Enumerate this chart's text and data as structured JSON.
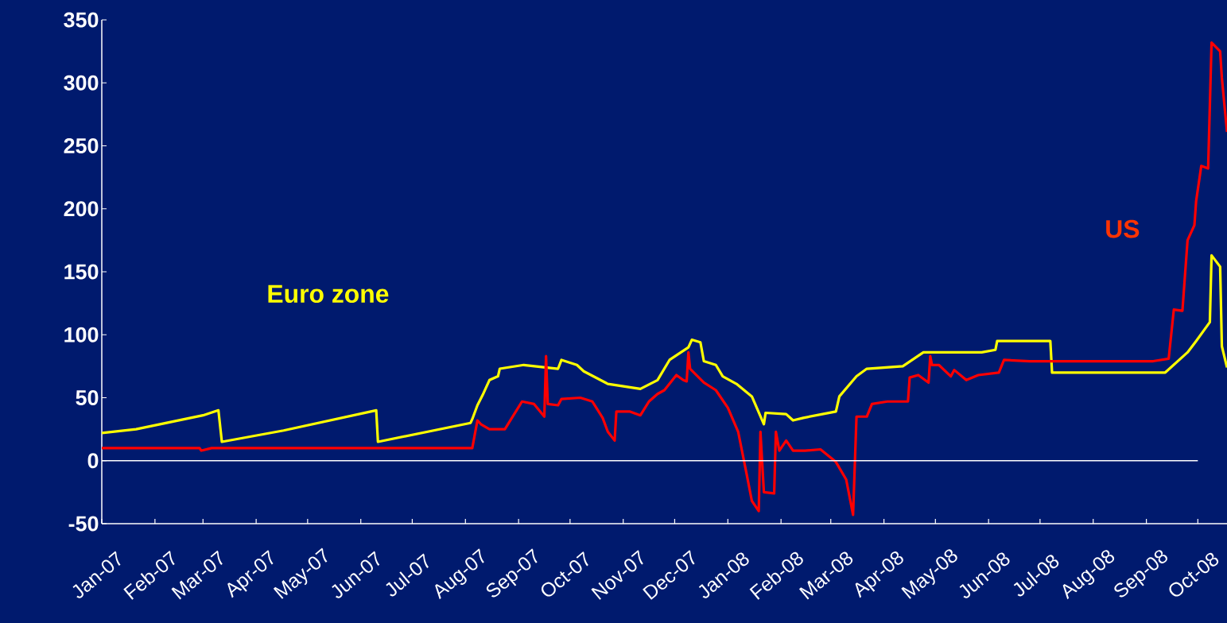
{
  "chart_data": {
    "type": "line",
    "xlim": [
      "2007-01-01",
      "2008-10-18"
    ],
    "xticks": [
      {
        "value": "2007-01-01",
        "label": "Jan-07"
      },
      {
        "value": "2007-02-01",
        "label": "Feb-07"
      },
      {
        "value": "2007-03-01",
        "label": "Mar-07"
      },
      {
        "value": "2007-04-01",
        "label": "Apr-07"
      },
      {
        "value": "2007-05-01",
        "label": "May-07"
      },
      {
        "value": "2007-06-01",
        "label": "Jun-07"
      },
      {
        "value": "2007-07-01",
        "label": "Jul-07"
      },
      {
        "value": "2007-08-01",
        "label": "Aug-07"
      },
      {
        "value": "2007-09-01",
        "label": "Sep-07"
      },
      {
        "value": "2007-10-01",
        "label": "Oct-07"
      },
      {
        "value": "2007-11-01",
        "label": "Nov-07"
      },
      {
        "value": "2007-12-01",
        "label": "Dec-07"
      },
      {
        "value": "2008-01-01",
        "label": "Jan-08"
      },
      {
        "value": "2008-02-01",
        "label": "Feb-08"
      },
      {
        "value": "2008-03-01",
        "label": "Mar-08"
      },
      {
        "value": "2008-04-01",
        "label": "Apr-08"
      },
      {
        "value": "2008-05-01",
        "label": "May-08"
      },
      {
        "value": "2008-06-01",
        "label": "Jun-08"
      },
      {
        "value": "2008-07-01",
        "label": "Jul-08"
      },
      {
        "value": "2008-08-01",
        "label": "Aug-08"
      },
      {
        "value": "2008-09-01",
        "label": "Sep-08"
      },
      {
        "value": "2008-10-01",
        "label": "Oct-08"
      }
    ],
    "ylim": [
      -50,
      350
    ],
    "yticks": [
      -50,
      0,
      50,
      100,
      150,
      200,
      250,
      300,
      350
    ],
    "ref_lines": [
      {
        "axis": "y",
        "value": 0,
        "color": "#ffffff"
      }
    ],
    "series": [
      {
        "name": "Euro zone",
        "color": "#ffff00",
        "x": [
          "2007-01-01",
          "2007-01-21",
          "2007-03-01",
          "2007-03-10",
          "2007-03-12",
          "2007-04-17",
          "2007-06-10",
          "2007-06-11",
          "2007-08-04",
          "2007-08-05",
          "2007-08-08",
          "2007-08-11",
          "2007-08-15",
          "2007-08-20",
          "2007-08-21",
          "2007-09-04",
          "2007-09-24",
          "2007-09-26",
          "2007-10-05",
          "2007-10-09",
          "2007-10-23",
          "2007-11-11",
          "2007-11-21",
          "2007-11-28",
          "2007-12-09",
          "2007-12-11",
          "2007-12-16",
          "2007-12-18",
          "2007-12-25",
          "2007-12-29",
          "2008-01-06",
          "2008-01-15",
          "2008-01-22",
          "2008-01-23",
          "2008-02-04",
          "2008-02-08",
          "2008-02-14",
          "2008-03-04",
          "2008-03-06",
          "2008-03-16",
          "2008-03-22",
          "2008-04-12",
          "2008-04-24",
          "2008-05-28",
          "2008-06-05",
          "2008-06-06",
          "2008-07-07",
          "2008-07-08",
          "2008-09-12",
          "2008-09-25",
          "2008-09-30",
          "2008-10-08",
          "2008-10-09",
          "2008-10-14",
          "2008-10-15",
          "2008-10-18"
        ],
        "values": [
          22,
          25,
          36,
          40,
          15,
          24,
          40,
          15,
          30,
          33,
          44,
          52,
          64,
          67,
          73,
          76,
          73,
          80,
          76,
          71,
          61,
          57,
          64,
          80,
          90,
          96,
          94,
          79,
          76,
          67,
          61,
          51,
          29,
          38,
          37,
          32,
          34,
          39,
          51,
          67,
          73,
          75,
          86,
          86,
          88,
          95,
          95,
          70,
          70,
          86,
          95,
          110,
          163,
          154,
          91,
          74
        ]
      },
      {
        "name": "US",
        "color": "#ff0000",
        "x": [
          "2007-01-01",
          "2007-02-27",
          "2007-02-28",
          "2007-03-06",
          "2007-08-05",
          "2007-08-08",
          "2007-08-10",
          "2007-08-15",
          "2007-08-24",
          "2007-09-03",
          "2007-09-10",
          "2007-09-16",
          "2007-09-17",
          "2007-09-18",
          "2007-09-24",
          "2007-09-26",
          "2007-10-07",
          "2007-10-14",
          "2007-10-20",
          "2007-10-23",
          "2007-10-27",
          "2007-10-28",
          "2007-11-05",
          "2007-11-11",
          "2007-11-16",
          "2007-11-21",
          "2007-11-25",
          "2007-12-02",
          "2007-12-06",
          "2007-12-08",
          "2007-12-09",
          "2007-12-10",
          "2007-12-18",
          "2007-12-25",
          "2008-01-01",
          "2008-01-07",
          "2008-01-12",
          "2008-01-15",
          "2008-01-19",
          "2008-01-20",
          "2008-01-22",
          "2008-01-28",
          "2008-01-29",
          "2008-01-31",
          "2008-02-04",
          "2008-02-08",
          "2008-02-15",
          "2008-02-24",
          "2008-03-04",
          "2008-03-10",
          "2008-03-14",
          "2008-03-16",
          "2008-03-22",
          "2008-03-25",
          "2008-04-03",
          "2008-04-15",
          "2008-04-16",
          "2008-04-21",
          "2008-04-27",
          "2008-04-28",
          "2008-04-29",
          "2008-05-03",
          "2008-05-10",
          "2008-05-12",
          "2008-05-19",
          "2008-05-26",
          "2008-06-07",
          "2008-06-10",
          "2008-06-25",
          "2008-09-05",
          "2008-09-14",
          "2008-09-17",
          "2008-09-22",
          "2008-09-25",
          "2008-09-29",
          "2008-09-30",
          "2008-10-03",
          "2008-10-07",
          "2008-10-09",
          "2008-10-14",
          "2008-10-15",
          "2008-10-18"
        ],
        "values": [
          10,
          10,
          8,
          10,
          10,
          32,
          29,
          25,
          25,
          47,
          45,
          35,
          83,
          45,
          44,
          49,
          50,
          47,
          34,
          23,
          16,
          39,
          39,
          36,
          47,
          53,
          56,
          68,
          64,
          63,
          86,
          73,
          62,
          56,
          42,
          23,
          -11,
          -32,
          -40,
          23,
          -25,
          -26,
          23,
          8,
          16,
          8,
          8,
          9,
          -1,
          -15,
          -43,
          35,
          35,
          45,
          47,
          47,
          66,
          68,
          62,
          83,
          76,
          76,
          67,
          72,
          64,
          68,
          70,
          80,
          79,
          79,
          81,
          120,
          119,
          175,
          187,
          206,
          234,
          232,
          332,
          325,
          304,
          261
        ]
      }
    ],
    "legend": false,
    "grid": false,
    "marker": "none",
    "line_style": "solid"
  }
}
